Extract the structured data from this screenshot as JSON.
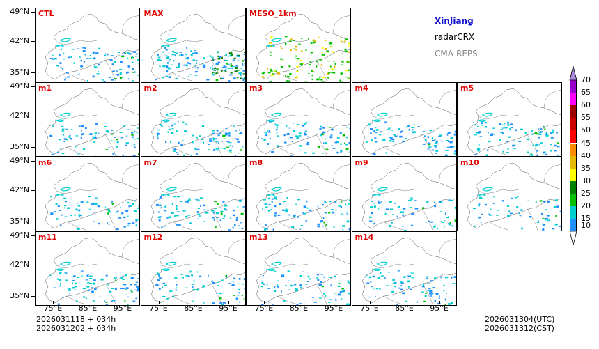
{
  "panels": [
    {
      "label": "CTL",
      "density": 0.6,
      "variant": "ctl"
    },
    {
      "label": "MAX",
      "density": 1.0,
      "variant": "max"
    },
    {
      "label": "MESO_1km",
      "density": 0.8,
      "variant": "meso"
    },
    {
      "label": "m1",
      "density": 0.45,
      "variant": "m"
    },
    {
      "label": "m2",
      "density": 0.55,
      "variant": "m"
    },
    {
      "label": "m3",
      "density": 0.5,
      "variant": "m"
    },
    {
      "label": "m4",
      "density": 0.5,
      "variant": "m"
    },
    {
      "label": "m5",
      "density": 0.6,
      "variant": "m"
    },
    {
      "label": "m6",
      "density": 0.5,
      "variant": "m"
    },
    {
      "label": "m7",
      "density": 0.55,
      "variant": "m"
    },
    {
      "label": "m8",
      "density": 0.5,
      "variant": "m"
    },
    {
      "label": "m9",
      "density": 0.45,
      "variant": "m"
    },
    {
      "label": "m10",
      "density": 0.35,
      "variant": "m"
    },
    {
      "label": "m11",
      "density": 0.55,
      "variant": "m"
    },
    {
      "label": "m12",
      "density": 0.45,
      "variant": "m"
    },
    {
      "label": "m13",
      "density": 0.45,
      "variant": "m"
    },
    {
      "label": "m14",
      "density": 0.5,
      "variant": "m"
    }
  ],
  "axes": {
    "lat_labels": [
      "49°N",
      "42°N",
      "35°N"
    ],
    "lon_labels": [
      "75°E",
      "85°E",
      "95°E"
    ]
  },
  "legend": {
    "region": "XinJiang",
    "product": "radarCRX",
    "source": "CMA-REPS"
  },
  "colorbar": {
    "levels": [
      "10",
      "15",
      "20",
      "25",
      "30",
      "35",
      "40",
      "45",
      "50",
      "55",
      "60",
      "65",
      "70"
    ],
    "colors": [
      "#1e90ff",
      "#00ced1",
      "#00c000",
      "#008000",
      "#ffff00",
      "#e6b800",
      "#ff8c00",
      "#ff0000",
      "#cc0000",
      "#a00000",
      "#ff00ff",
      "#9900cc",
      "#aa88dd"
    ]
  },
  "footer": {
    "init_utc": "2026031118  +  034h",
    "init_cst": "2026031202  +  034h",
    "valid_utc": "2026031304(UTC)",
    "valid_cst": "2026031312(CST)"
  },
  "colors": {
    "label": "#e00000",
    "border": "#555555"
  }
}
